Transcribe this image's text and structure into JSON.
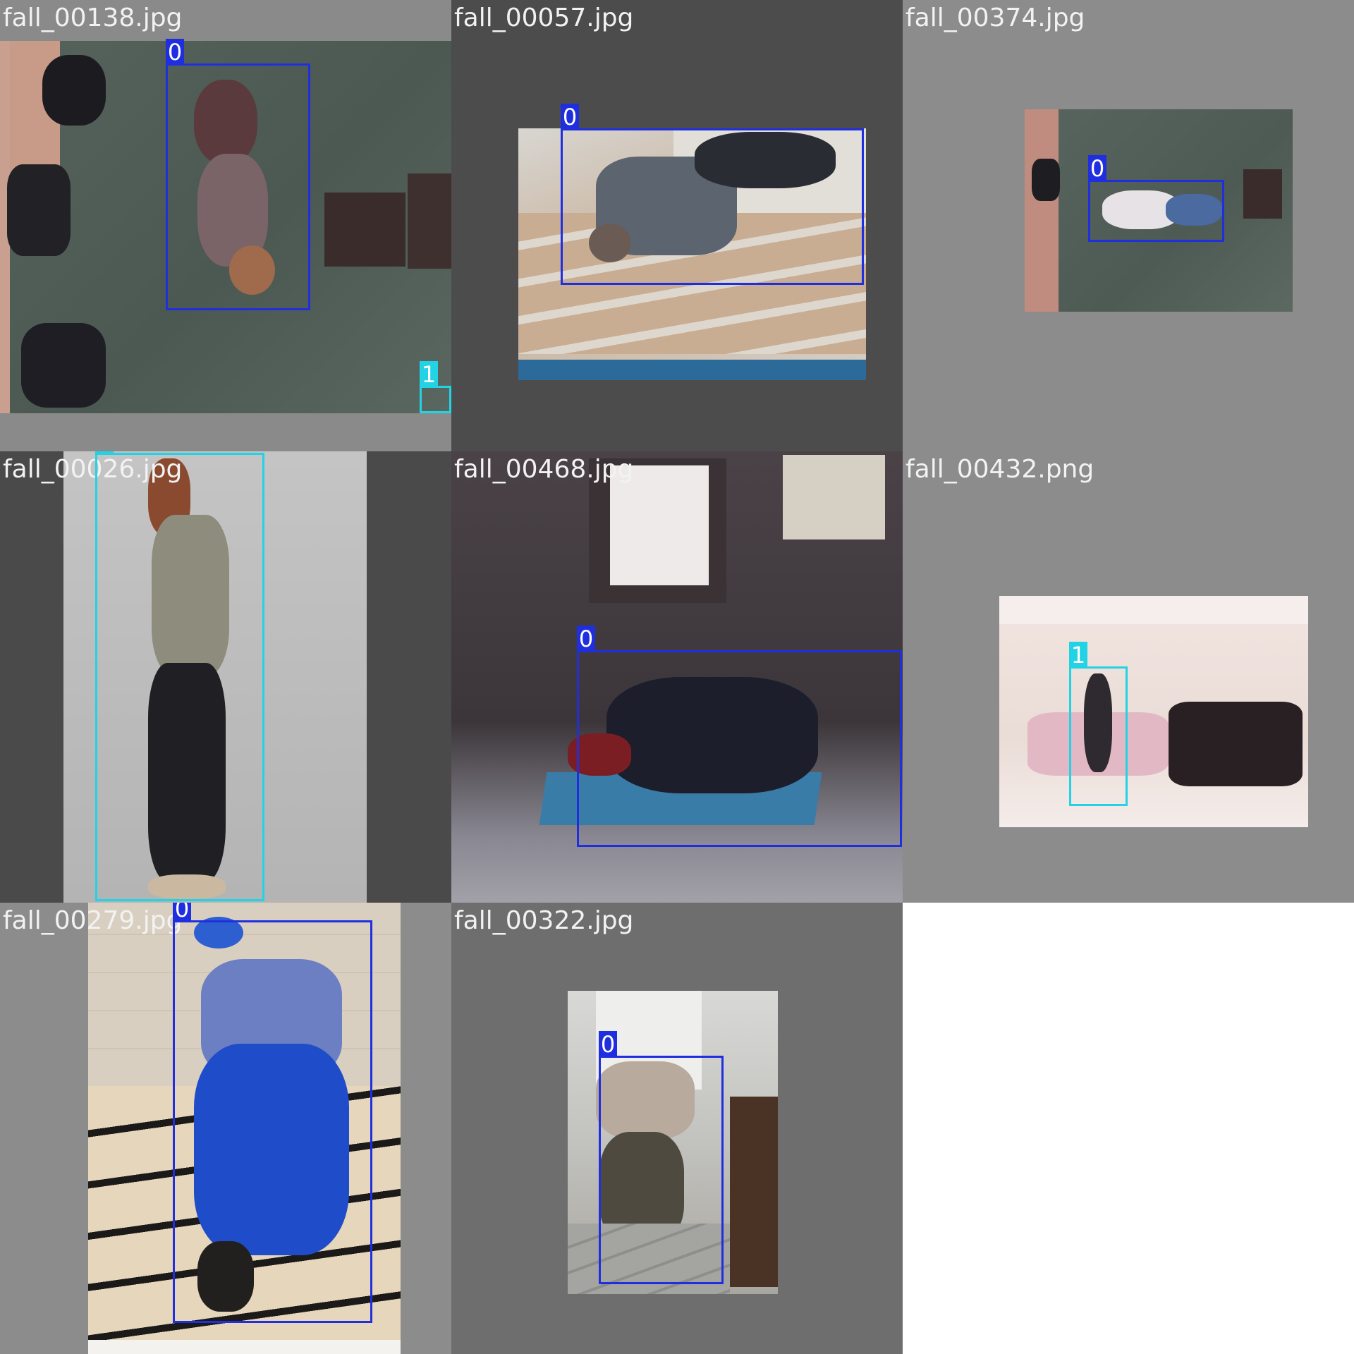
{
  "tiles": [
    {
      "file": "fall_00138.jpg",
      "labels": [
        "0",
        "1"
      ]
    },
    {
      "file": "fall_00057.jpg",
      "labels": [
        "0"
      ]
    },
    {
      "file": "fall_00374.jpg",
      "labels": [
        "0"
      ]
    },
    {
      "file": "fall_00026.jpg",
      "labels": [
        "1"
      ]
    },
    {
      "file": "fall_00468.jpg",
      "labels": [
        "0"
      ]
    },
    {
      "file": "fall_00432.png",
      "labels": [
        "1"
      ]
    },
    {
      "file": "fall_00279.jpg",
      "labels": [
        "0"
      ]
    },
    {
      "file": "fall_00322.jpg",
      "labels": [
        "0"
      ]
    }
  ],
  "colors": {
    "class_0": "#1f2fe0",
    "class_1": "#22d3e6",
    "letterbox_gray": "#8c8c8c",
    "letterbox_dark": "#4a4a4a",
    "background": "#ffffff"
  }
}
